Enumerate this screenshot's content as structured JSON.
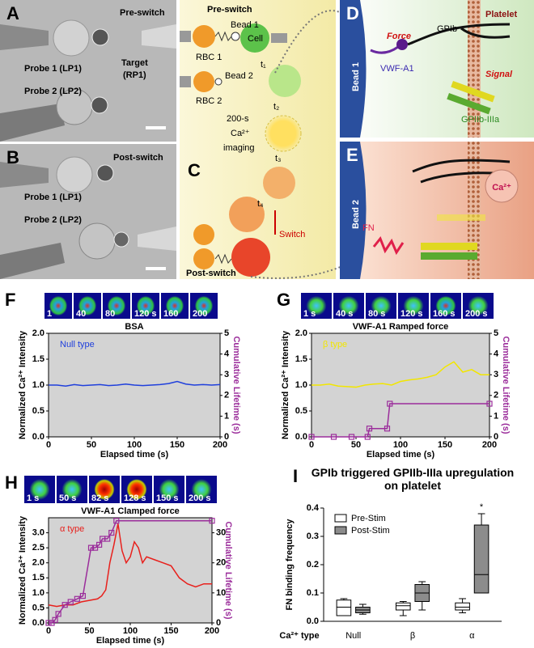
{
  "panels": {
    "A": {
      "label": "A",
      "title": "Pre-switch",
      "probe1": "Probe 1 (LP1)",
      "target": [
        "Target",
        "(RP1)"
      ],
      "probe2": "Probe 2 (LP2)"
    },
    "B": {
      "label": "B",
      "title": "Post-switch",
      "probe1": "Probe 1 (LP1)",
      "probe2": "Probe 2 (LP2)"
    },
    "C": {
      "label": "C",
      "pre_switch": "Pre-switch",
      "bead1": "Bead 1",
      "cell": "Cell",
      "rbc1": "RBC 1",
      "bead2": "Bead 2",
      "rbc2": "RBC 2",
      "steps": [
        "t₁",
        "t₂",
        "t₃",
        "t₄"
      ],
      "imaging": [
        "200-s",
        "Ca²⁺",
        "imaging"
      ],
      "switch": "Switch",
      "post_switch": "Post-switch"
    },
    "D": {
      "label": "D",
      "bead": "Bead 1",
      "platelet": "Platelet",
      "force": "Force",
      "gpib": "GPIb",
      "vwf": "VWF-A1",
      "signal": "Signal",
      "integrin": "GPIIb-IIIa"
    },
    "E": {
      "label": "E",
      "bead": "Bead 2",
      "calcium": "Ca²⁺",
      "fn": "FN"
    }
  },
  "chart_data": [
    {
      "type": "line",
      "label": "F",
      "title": "BSA",
      "annotation": "Null type",
      "thumbnails": [
        "1",
        "40",
        "80",
        "120 s",
        "160",
        "200"
      ],
      "xlabel": "Elapsed time (s)",
      "ylabel": "Normalized Ca²⁺ Intensity",
      "y2label": "Cumulative Lifetime (s)",
      "xlim": [
        0,
        200
      ],
      "xticks": [
        0,
        50,
        100,
        150,
        200
      ],
      "ylim": [
        0,
        2
      ],
      "yticks": [
        {
          "value": 0,
          "label": "0.0"
        },
        0.5,
        {
          "value": 1,
          "label": "1.0"
        },
        1.5,
        {
          "value": 2,
          "label": "2.0"
        }
      ],
      "y2lim": [
        0,
        5
      ],
      "y2ticks": [
        0,
        1,
        2,
        3,
        4,
        5
      ],
      "background": "#d3d3d3",
      "series": [
        {
          "color": "#1f3fdc",
          "x": [
            0,
            10,
            20,
            30,
            40,
            50,
            60,
            70,
            80,
            90,
            100,
            110,
            120,
            130,
            140,
            150,
            160,
            170,
            180,
            190,
            200
          ],
          "values": [
            1.0,
            1.0,
            0.98,
            1.01,
            0.99,
            1.0,
            1.01,
            0.99,
            1.0,
            1.02,
            1.0,
            0.99,
            1.0,
            1.01,
            1.03,
            1.07,
            1.02,
            1.0,
            1.01,
            1.0,
            1.01
          ]
        }
      ]
    },
    {
      "type": "line",
      "label": "G",
      "title": "VWF-A1  Ramped force",
      "annotation": "β type",
      "thumbnails": [
        "1 s",
        "40 s",
        "80 s",
        "120 s",
        "160 s",
        "200 s"
      ],
      "xlabel": "Elapsed time (s)",
      "ylabel": "Normalized Ca²⁺ Intensity",
      "y2label": "Cumulative Lifetime (s)",
      "xlim": [
        0,
        200
      ],
      "xticks": [
        0,
        50,
        100,
        150,
        200
      ],
      "ylim": [
        0,
        2
      ],
      "yticks": [
        {
          "value": 0,
          "label": "0.0"
        },
        0.5,
        {
          "value": 1,
          "label": "1.0"
        },
        1.5,
        {
          "value": 2,
          "label": "2.0"
        }
      ],
      "y2lim": [
        0,
        5
      ],
      "y2ticks": [
        0,
        1,
        2,
        3,
        4,
        5
      ],
      "background": "#d3d3d3",
      "series": [
        {
          "color": "#f2e600",
          "x": [
            0,
            10,
            20,
            30,
            40,
            50,
            60,
            70,
            80,
            90,
            100,
            110,
            120,
            130,
            140,
            150,
            160,
            170,
            180,
            190,
            200
          ],
          "values": [
            1.0,
            1.0,
            1.02,
            0.98,
            0.97,
            0.96,
            1.0,
            1.02,
            1.03,
            1.0,
            1.07,
            1.1,
            1.12,
            1.15,
            1.2,
            1.35,
            1.45,
            1.25,
            1.3,
            1.2,
            1.2
          ]
        },
        {
          "color": "#9b2d9b",
          "axis": "y2",
          "markers": true,
          "x": [
            0,
            25,
            45,
            63,
            65,
            85,
            88,
            200
          ],
          "values": [
            0,
            0,
            0,
            0,
            0.4,
            0.4,
            1.6,
            1.6
          ]
        }
      ]
    },
    {
      "type": "line",
      "label": "H",
      "title": "VWF-A1  Clamped force",
      "annotation": "α type",
      "thumbnails": [
        "1 s",
        "50 s",
        "82 s",
        "128 s",
        "150 s",
        "200 s"
      ],
      "xlabel": "Elapsed time (s)",
      "ylabel": "Normalized Ca²⁺ Intensity",
      "y2label": "Cumulative Lifetime (s)",
      "xlim": [
        0,
        200
      ],
      "xticks": [
        0,
        50,
        100,
        150,
        200
      ],
      "ylim": [
        0,
        3.5
      ],
      "yticks": [
        {
          "value": 0,
          "label": "0.0"
        },
        0.5,
        {
          "value": 1,
          "label": "1.0"
        },
        1.5,
        {
          "value": 2,
          "label": "2.0"
        },
        2.5,
        {
          "value": 3,
          "label": "3.0"
        }
      ],
      "y2lim": [
        0,
        35
      ],
      "y2ticks": [
        0,
        10,
        20,
        30
      ],
      "background": "#d3d3d3",
      "series": [
        {
          "color": "#e8201c",
          "x": [
            0,
            10,
            20,
            30,
            40,
            50,
            60,
            65,
            70,
            75,
            80,
            85,
            90,
            95,
            100,
            105,
            110,
            115,
            120,
            130,
            140,
            150,
            160,
            170,
            180,
            190,
            200
          ],
          "values": [
            0.6,
            0.55,
            0.6,
            0.6,
            0.7,
            0.75,
            0.8,
            0.9,
            1.1,
            2.0,
            2.6,
            3.3,
            2.4,
            2.0,
            2.2,
            2.7,
            2.5,
            2.0,
            2.2,
            2.1,
            2.0,
            1.9,
            1.5,
            1.3,
            1.2,
            1.3,
            1.3
          ]
        },
        {
          "color": "#9b2d9b",
          "axis": "y2",
          "markers": true,
          "x": [
            0,
            4,
            8,
            12,
            20,
            27,
            35,
            42,
            52,
            57,
            62,
            66,
            72,
            77,
            83,
            200
          ],
          "values": [
            0,
            0,
            1,
            3,
            6,
            7,
            8,
            9,
            25,
            25,
            26,
            28,
            28,
            30,
            34,
            34
          ]
        }
      ]
    },
    {
      "type": "box",
      "label": "I",
      "title": "GPIb triggered GPIIb-IIIa upregulation on platelet",
      "ylabel": "FN binding frequency",
      "xlabel": "Ca²⁺ type",
      "annotation": "*",
      "categories": [
        "Null",
        "β",
        "α"
      ],
      "ylim": [
        0,
        0.4
      ],
      "yticks": [
        {
          "value": 0,
          "label": "0.0"
        },
        0.1,
        0.2,
        0.3,
        0.4
      ],
      "series": [
        {
          "name": "Pre-Stim",
          "color": "#ffffff",
          "values": [
            [
              0.02,
              0.02,
              0.05,
              0.075,
              0.08
            ],
            [
              0.02,
              0.04,
              0.055,
              0.065,
              0.07
            ],
            [
              0.03,
              0.04,
              0.05,
              0.065,
              0.08
            ]
          ]
        },
        {
          "name": "Post-Stim",
          "color": "#8c8c8c",
          "values": [
            [
              0.025,
              0.03,
              0.04,
              0.05,
              0.06
            ],
            [
              0.04,
              0.07,
              0.1,
              0.13,
              0.14
            ],
            [
              0.1,
              0.1,
              0.165,
              0.34,
              0.38
            ]
          ]
        }
      ]
    }
  ]
}
